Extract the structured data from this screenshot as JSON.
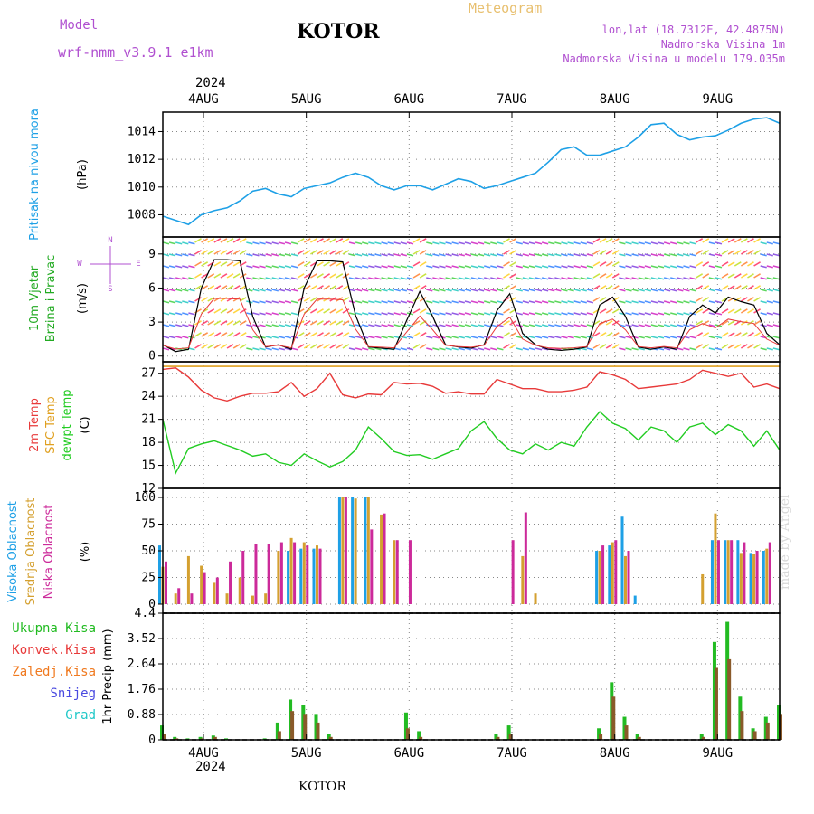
{
  "header": {
    "model_label": "Model",
    "model_name": "wrf-nmm_v3.9.1 e1km",
    "location_title": "KOTOR",
    "chart_kind": "Meteogram",
    "coords": "lon,lat (18.7312E, 42.4875N)",
    "elevation": "Nadmorska Visina 1m",
    "model_elevation": "Nadmorska Visina u modelu 179.035m",
    "footer_location": "KOTOR",
    "credit": "made by Angel",
    "year": "2024"
  },
  "colors": {
    "pressure": "#1ea0e6",
    "temp2m": "#e83a3a",
    "sfc_temp": "#e0a020",
    "dewpoint": "#22cc22",
    "high_cloud": "#1ea0e6",
    "mid_cloud": "#d4a030",
    "low_cloud": "#cc2a9a",
    "precip_total": "#22bb22",
    "precip_conv": "#e83a3a",
    "precip_frozen": "#f07a20",
    "snow": "#4a4ae0",
    "hail": "#20c8c8",
    "wind_speed": "#000000"
  },
  "x_axis": {
    "day_labels": [
      "4AUG",
      "5AUG",
      "6AUG",
      "7AUG",
      "8AUG",
      "9AUG"
    ],
    "day_start_hour": 9.5,
    "total_hours": 144
  },
  "chart_data": [
    {
      "type": "line",
      "panel": "pressure",
      "ylabel_side": "Pritisak na nivou mora",
      "ylabel": "(hPa)",
      "ylim": [
        1006.4,
        1015.4
      ],
      "yticks": [
        "1008",
        "1010",
        "1012",
        "1014"
      ],
      "series": [
        {
          "name": "Pritisak na nivou mora",
          "x": [
            0,
            3,
            6,
            9,
            12,
            15,
            18,
            21,
            24,
            27,
            30,
            33,
            36,
            39,
            42,
            45,
            48,
            51,
            54,
            57,
            60,
            63,
            66,
            69,
            72,
            75,
            78,
            81,
            84,
            87,
            90,
            93,
            96,
            99,
            102,
            105,
            108,
            111,
            114,
            117,
            120,
            123,
            126,
            129,
            132,
            135,
            138,
            141,
            144
          ],
          "y": [
            1007.9,
            1007.6,
            1007.3,
            1008.0,
            1008.3,
            1008.5,
            1009.0,
            1009.7,
            1009.9,
            1009.5,
            1009.3,
            1009.9,
            1010.1,
            1010.3,
            1010.7,
            1011.0,
            1010.7,
            1010.1,
            1009.8,
            1010.1,
            1010.1,
            1009.8,
            1010.2,
            1010.6,
            1010.4,
            1009.9,
            1010.1,
            1010.4,
            1010.7,
            1011.0,
            1011.8,
            1012.7,
            1012.9,
            1012.3,
            1012.3,
            1012.6,
            1012.9,
            1013.6,
            1014.5,
            1014.6,
            1013.8,
            1013.4,
            1013.6,
            1013.7,
            1014.1,
            1014.6,
            1014.9,
            1015.0,
            1014.6
          ]
        }
      ]
    },
    {
      "type": "line",
      "panel": "wind",
      "ylabel_side": [
        "10m Vjetar",
        "Brzina i Pravac"
      ],
      "ylabel": "(m/s)",
      "compass": [
        "N",
        "W",
        "E",
        "S"
      ],
      "ylim": [
        -0.5,
        10.5
      ],
      "yticks": [
        "0",
        "3",
        "6",
        "9"
      ],
      "series": [
        {
          "name": "Brzina",
          "x": [
            0,
            3,
            6,
            9,
            12,
            15,
            18,
            21,
            24,
            27,
            30,
            33,
            36,
            39,
            42,
            45,
            48,
            51,
            54,
            57,
            60,
            63,
            66,
            69,
            72,
            75,
            78,
            81,
            84,
            87,
            90,
            93,
            96,
            99,
            102,
            105,
            108,
            111,
            114,
            117,
            120,
            123,
            126,
            129,
            132,
            135,
            138,
            141,
            144
          ],
          "y": [
            1.0,
            0.4,
            0.6,
            6.0,
            8.5,
            8.5,
            8.4,
            3.5,
            0.8,
            1.0,
            0.6,
            6.0,
            8.4,
            8.4,
            8.3,
            3.6,
            0.8,
            0.7,
            0.6,
            3.2,
            5.7,
            3.5,
            1.0,
            0.8,
            0.7,
            1.0,
            4.0,
            5.5,
            2.0,
            1.0,
            0.6,
            0.5,
            0.6,
            0.8,
            4.5,
            5.2,
            3.5,
            0.8,
            0.6,
            0.8,
            0.6,
            3.5,
            4.5,
            3.8,
            5.2,
            4.8,
            4.5,
            2.0,
            1.0
          ]
        }
      ]
    },
    {
      "type": "line",
      "panel": "temperature",
      "ylabel_side": [
        "2m Temp",
        "SFC Temp",
        "dewpt Temp"
      ],
      "ylabel": "(C)",
      "ylim": [
        12,
        28.5
      ],
      "yticks": [
        "12",
        "15",
        "18",
        "21",
        "24",
        "27"
      ],
      "series": [
        {
          "name": "2m Temp",
          "x": [
            0,
            3,
            6,
            9,
            12,
            15,
            18,
            21,
            24,
            27,
            30,
            33,
            36,
            39,
            42,
            45,
            48,
            51,
            54,
            57,
            60,
            63,
            66,
            69,
            72,
            75,
            78,
            81,
            84,
            87,
            90,
            93,
            96,
            99,
            102,
            105,
            108,
            111,
            114,
            117,
            120,
            123,
            126,
            129,
            132,
            135,
            138,
            141,
            144
          ],
          "y": [
            27.5,
            27.7,
            26.5,
            24.8,
            23.8,
            23.4,
            24.0,
            24.4,
            24.4,
            24.6,
            25.8,
            24.0,
            25.0,
            27.0,
            24.2,
            23.8,
            24.3,
            24.2,
            25.8,
            25.6,
            25.7,
            25.3,
            24.4,
            24.6,
            24.3,
            24.3,
            26.2,
            25.6,
            25.0,
            25.0,
            24.6,
            24.6,
            24.8,
            25.2,
            27.2,
            26.8,
            26.2,
            25.0,
            25.2,
            25.4,
            25.6,
            26.2,
            27.4,
            27.0,
            26.6,
            27.0,
            25.2,
            25.6,
            25.0
          ]
        },
        {
          "name": "SFC Temp",
          "x": [
            0,
            144
          ],
          "y": [
            27.9,
            27.9
          ]
        },
        {
          "name": "dewpt Temp",
          "x": [
            0,
            3,
            6,
            9,
            12,
            15,
            18,
            21,
            24,
            27,
            30,
            33,
            36,
            39,
            42,
            45,
            48,
            51,
            54,
            57,
            60,
            63,
            66,
            69,
            72,
            75,
            78,
            81,
            84,
            87,
            90,
            93,
            96,
            99,
            102,
            105,
            108,
            111,
            114,
            117,
            120,
            123,
            126,
            129,
            132,
            135,
            138,
            141,
            144
          ],
          "y": [
            21.0,
            14.0,
            17.2,
            17.8,
            18.2,
            17.6,
            17.0,
            16.2,
            16.5,
            15.4,
            15.0,
            16.5,
            15.6,
            14.8,
            15.5,
            17.0,
            20.0,
            18.5,
            16.8,
            16.3,
            16.4,
            15.8,
            16.5,
            17.2,
            19.5,
            20.7,
            18.5,
            17.0,
            16.5,
            17.8,
            17.0,
            18.0,
            17.5,
            20.0,
            22.0,
            20.5,
            19.8,
            18.3,
            20.0,
            19.5,
            18.0,
            20.0,
            20.5,
            19.0,
            20.3,
            19.5,
            17.5,
            19.5,
            17.0
          ]
        }
      ]
    },
    {
      "type": "bar",
      "panel": "clouds",
      "ylabel_side": [
        "Visoka Oblacnost",
        "Srednja Oblacnost",
        "Niska Oblacnost"
      ],
      "ylabel": "(%)",
      "ylim": [
        0,
        100
      ],
      "yticks": [
        "0",
        "25",
        "50",
        "75",
        "100"
      ],
      "x": [
        0,
        3,
        6,
        9,
        12,
        15,
        18,
        21,
        24,
        27,
        30,
        33,
        36,
        39,
        42,
        45,
        48,
        51,
        54,
        57,
        60,
        63,
        66,
        69,
        72,
        75,
        78,
        81,
        84,
        87,
        90,
        93,
        96,
        99,
        102,
        105,
        108,
        111,
        114,
        117,
        120,
        123,
        126,
        129,
        132,
        135,
        138,
        141,
        144
      ],
      "series": [
        {
          "name": "Visoka Oblacnost",
          "values": [
            55,
            0,
            0,
            0,
            0,
            0,
            0,
            0,
            0,
            0,
            50,
            52,
            52,
            0,
            100,
            100,
            100,
            0,
            0,
            0,
            0,
            0,
            0,
            0,
            0,
            0,
            0,
            0,
            0,
            0,
            0,
            0,
            0,
            0,
            50,
            55,
            82,
            8,
            0,
            0,
            0,
            0,
            0,
            60,
            60,
            60,
            48,
            50,
            0
          ]
        },
        {
          "name": "Srednja Oblacnost",
          "values": [
            35,
            10,
            45,
            36,
            20,
            10,
            25,
            8,
            10,
            50,
            62,
            58,
            55,
            0,
            100,
            99,
            100,
            84,
            60,
            0,
            0,
            0,
            0,
            0,
            0,
            0,
            0,
            0,
            45,
            10,
            0,
            0,
            0,
            0,
            50,
            58,
            45,
            0,
            0,
            0,
            0,
            0,
            28,
            85,
            60,
            48,
            47,
            52,
            0
          ]
        },
        {
          "name": "Niska Oblacnost",
          "values": [
            40,
            15,
            10,
            30,
            25,
            40,
            50,
            56,
            56,
            58,
            58,
            55,
            52,
            0,
            100,
            0,
            70,
            85,
            60,
            60,
            0,
            0,
            0,
            0,
            0,
            0,
            0,
            60,
            86,
            0,
            0,
            0,
            0,
            0,
            55,
            60,
            50,
            0,
            0,
            0,
            0,
            0,
            0,
            60,
            60,
            58,
            50,
            58,
            0
          ]
        }
      ]
    },
    {
      "type": "bar",
      "panel": "precipitation",
      "ylabel_side": [
        "Ukupna Kisa",
        "Konvek.Kisa",
        "Zaledj.Kisa",
        "Snijeg",
        "Grad"
      ],
      "ylabel": "1hr Precip (mm)",
      "ylim": [
        0,
        4.4
      ],
      "yticks": [
        "0",
        "0.88",
        "1.76",
        "2.64",
        "3.52",
        "4.4"
      ],
      "x": [
        0,
        3,
        6,
        9,
        12,
        15,
        18,
        21,
        24,
        27,
        30,
        33,
        36,
        39,
        42,
        45,
        48,
        51,
        54,
        57,
        60,
        63,
        66,
        69,
        72,
        75,
        78,
        81,
        84,
        87,
        90,
        93,
        96,
        99,
        102,
        105,
        108,
        111,
        114,
        117,
        120,
        123,
        126,
        129,
        132,
        135,
        138,
        141,
        144
      ],
      "series": [
        {
          "name": "Ukupna Kisa",
          "values": [
            0.5,
            0.1,
            0.05,
            0.1,
            0.15,
            0.05,
            0,
            0,
            0.05,
            0.6,
            1.4,
            1.2,
            0.9,
            0.2,
            0,
            0,
            0,
            0,
            0,
            0.95,
            0.3,
            0,
            0,
            0,
            0,
            0,
            0.2,
            0.5,
            0,
            0,
            0,
            0,
            0,
            0,
            0.4,
            2.0,
            0.8,
            0.2,
            0,
            0,
            0,
            0,
            0.2,
            3.4,
            4.1,
            1.5,
            0.4,
            0.8,
            1.2
          ]
        },
        {
          "name": "Konvek.Kisa",
          "values": [
            0.2,
            0.05,
            0,
            0.05,
            0.1,
            0,
            0,
            0,
            0,
            0.3,
            1.0,
            0.9,
            0.6,
            0.1,
            0,
            0,
            0,
            0,
            0,
            0.4,
            0.1,
            0,
            0,
            0,
            0,
            0,
            0.1,
            0.2,
            0,
            0,
            0,
            0,
            0,
            0,
            0.2,
            1.5,
            0.5,
            0.1,
            0,
            0,
            0,
            0,
            0.1,
            2.5,
            2.8,
            1.0,
            0.3,
            0.6,
            0.9
          ]
        },
        {
          "name": "Zaledj.Kisa",
          "values": [
            0,
            0,
            0,
            0,
            0,
            0,
            0,
            0,
            0,
            0,
            0,
            0,
            0,
            0,
            0,
            0,
            0,
            0,
            0,
            0,
            0,
            0,
            0,
            0,
            0,
            0,
            0,
            0,
            0,
            0,
            0,
            0,
            0,
            0,
            0,
            0,
            0,
            0,
            0,
            0,
            0,
            0,
            0,
            0,
            0,
            0,
            0,
            0,
            0
          ]
        },
        {
          "name": "Snijeg",
          "values": [
            0,
            0,
            0,
            0,
            0,
            0,
            0,
            0,
            0,
            0,
            0,
            0,
            0,
            0,
            0,
            0,
            0,
            0,
            0,
            0,
            0,
            0,
            0,
            0,
            0,
            0,
            0,
            0,
            0,
            0,
            0,
            0,
            0,
            0,
            0,
            0,
            0,
            0,
            0,
            0,
            0,
            0,
            0,
            0,
            0,
            0,
            0,
            0,
            0
          ]
        },
        {
          "name": "Grad",
          "values": [
            0,
            0,
            0,
            0,
            0,
            0,
            0,
            0,
            0,
            0,
            0,
            0,
            0,
            0,
            0,
            0,
            0,
            0,
            0,
            0,
            0,
            0,
            0,
            0,
            0,
            0,
            0,
            0,
            0,
            0,
            0,
            0,
            0,
            0,
            0,
            0,
            0,
            0,
            0,
            0,
            0,
            0,
            0,
            0,
            0,
            0,
            0,
            0,
            0
          ]
        }
      ]
    }
  ]
}
